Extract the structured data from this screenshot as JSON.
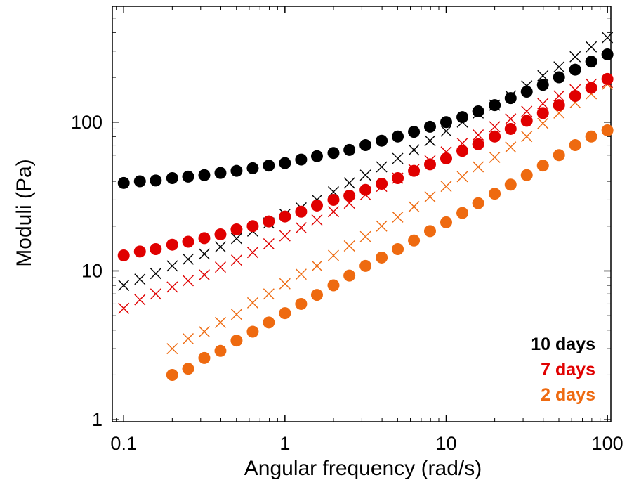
{
  "chart_data": {
    "type": "scatter",
    "title": "",
    "xlabel": "Angular frequency (rad/s)",
    "ylabel": "Moduli (Pa)",
    "xscale": "log",
    "yscale": "log",
    "xlim": [
      0.085,
      105
    ],
    "ylim": [
      0.97,
      600
    ],
    "xticks": [
      0.1,
      1,
      10,
      100
    ],
    "xtick_labels": [
      "0.1",
      "1",
      "10",
      "100"
    ],
    "yticks": [
      1,
      10,
      100
    ],
    "ytick_labels": [
      "1",
      "10",
      "100"
    ],
    "grid": false,
    "legend_position": "bottom-right",
    "legend": [
      {
        "label": "10 days",
        "color": "#000000"
      },
      {
        "label": "7 days",
        "color": "#e00000"
      },
      {
        "label": "2 days",
        "color": "#ee6a10"
      }
    ],
    "x": [
      0.1,
      0.126,
      0.158,
      0.2,
      0.251,
      0.316,
      0.398,
      0.501,
      0.631,
      0.794,
      1,
      1.26,
      1.58,
      2,
      2.51,
      3.16,
      3.98,
      5.01,
      6.31,
      7.94,
      10,
      12.6,
      15.8,
      20,
      25.1,
      31.6,
      39.8,
      50.1,
      63.1,
      79.4,
      100
    ],
    "series": [
      {
        "legend_index": 0,
        "marker": "circle",
        "color": "#000000",
        "x_start_index": 0,
        "values": [
          39,
          40,
          40.5,
          42,
          43,
          44,
          45.5,
          47,
          49,
          51,
          53,
          56,
          59,
          62,
          65,
          70,
          75,
          80,
          86,
          93,
          100,
          108,
          118,
          130,
          145,
          160,
          178,
          200,
          225,
          255,
          285
        ]
      },
      {
        "legend_index": 0,
        "marker": "cross",
        "color": "#000000",
        "x_start_index": 0,
        "values": [
          8,
          8.8,
          9.6,
          10.8,
          12,
          13,
          14.5,
          16.5,
          18.5,
          21,
          24,
          26.5,
          30,
          34,
          39,
          44,
          50,
          57,
          65,
          75,
          87,
          100,
          115,
          130,
          150,
          175,
          205,
          235,
          275,
          320,
          370
        ]
      },
      {
        "legend_index": 1,
        "marker": "circle",
        "color": "#e00000",
        "x_start_index": 0,
        "values": [
          12.7,
          13.5,
          14,
          15,
          15.7,
          16.6,
          17.6,
          19,
          20,
          21.5,
          23.2,
          25,
          27.5,
          30,
          32,
          35,
          38.5,
          42,
          47,
          52,
          57,
          64,
          71,
          80,
          90,
          102,
          115,
          130,
          150,
          170,
          195
        ]
      },
      {
        "legend_index": 1,
        "marker": "cross",
        "color": "#e00000",
        "x_start_index": 0,
        "values": [
          5.6,
          6.4,
          7,
          7.8,
          8.6,
          9.4,
          10.6,
          11.8,
          13.3,
          15.2,
          17.2,
          19.5,
          22,
          25,
          28.5,
          32.5,
          37,
          42,
          48,
          55,
          63,
          72,
          82,
          93,
          105,
          118,
          133,
          150,
          165,
          180,
          185
        ]
      },
      {
        "legend_index": 2,
        "marker": "circle",
        "color": "#ee6a10",
        "x_start_index": 3,
        "values": [
          2,
          2.2,
          2.6,
          2.9,
          3.4,
          3.9,
          4.5,
          5.2,
          6,
          6.9,
          8,
          9.3,
          10.8,
          12.3,
          14,
          16,
          18.5,
          21.2,
          24.5,
          28.5,
          33,
          38,
          44,
          51,
          60,
          70,
          80,
          88,
          100
        ]
      },
      {
        "legend_index": 2,
        "marker": "cross",
        "color": "#ee6a10",
        "x_start_index": 3,
        "values": [
          3,
          3.5,
          3.9,
          4.5,
          5.1,
          6.1,
          7,
          8.2,
          9.5,
          10.8,
          12.7,
          14.7,
          17,
          20,
          23,
          27,
          31.5,
          37,
          43,
          50,
          58,
          68,
          80,
          98,
          115,
          135,
          155,
          180,
          200
        ]
      }
    ]
  }
}
